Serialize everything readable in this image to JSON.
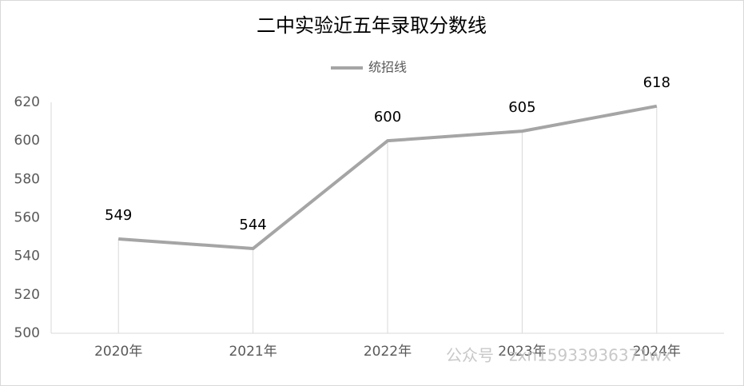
{
  "chart_data": {
    "type": "line",
    "title": "二中实验近五年录取分数线",
    "categories": [
      "2020年",
      "2021年",
      "2022年",
      "2023年",
      "2024年"
    ],
    "series": [
      {
        "name": "统招线",
        "color": "#a5a5a5",
        "values": [
          549,
          544,
          600,
          605,
          618
        ]
      }
    ],
    "ylim": [
      500,
      620
    ],
    "yticks": [
      500,
      520,
      540,
      560,
      580,
      600,
      620
    ],
    "drop_lines": true,
    "data_labels": true,
    "legend": "top",
    "watermark": "公众号 · zxn15933936371wx"
  }
}
